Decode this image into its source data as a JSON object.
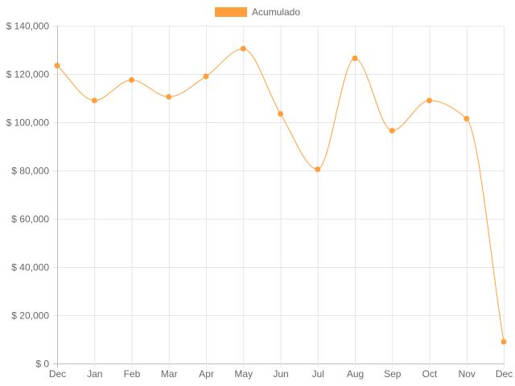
{
  "chart_data": {
    "type": "line",
    "title": "",
    "xlabel": "",
    "ylabel": "",
    "categories": [
      "Dec",
      "Jan",
      "Feb",
      "Mar",
      "Apr",
      "May",
      "Jun",
      "Jul",
      "Aug",
      "Sep",
      "Oct",
      "Nov",
      "Dec"
    ],
    "series": [
      {
        "name": "Acumulado",
        "color": "#ffa03c",
        "values": [
          123500,
          109000,
          117500,
          110500,
          119000,
          130500,
          103500,
          80500,
          126500,
          96500,
          109000,
          101500,
          9000
        ]
      }
    ],
    "ylim": [
      0,
      140000
    ],
    "yticks": [
      0,
      20000,
      40000,
      60000,
      80000,
      100000,
      120000,
      140000
    ],
    "ytick_labels": [
      "$ 0",
      "$ 20,000",
      "$ 40,000",
      "$ 60,000",
      "$ 80,000",
      "$ 100,000",
      "$ 120,000",
      "$ 140,000"
    ],
    "grid": true,
    "legend_position": "top-center"
  }
}
